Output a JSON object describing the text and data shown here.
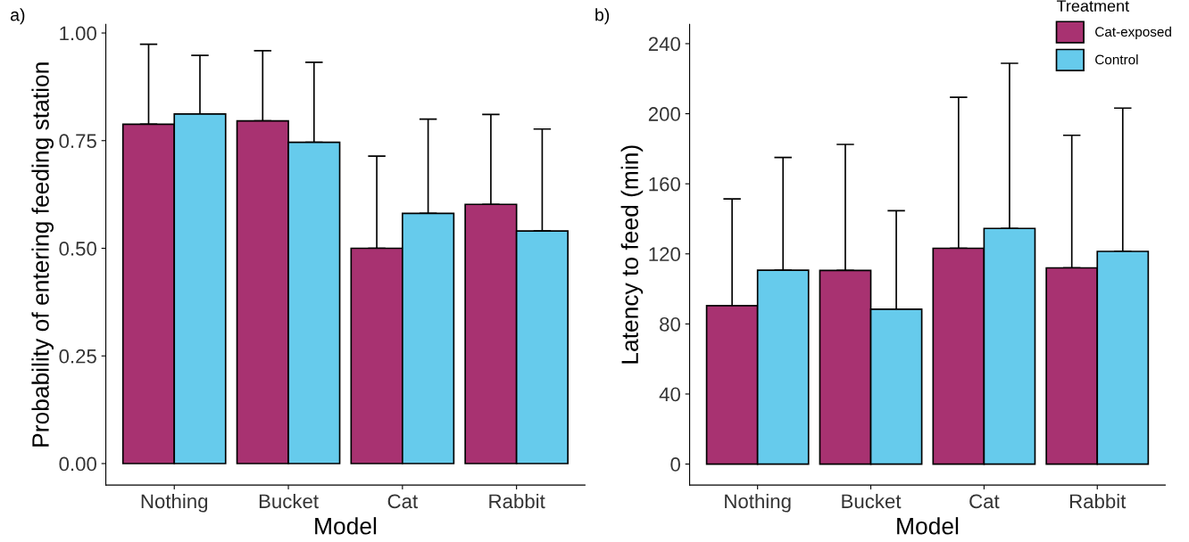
{
  "chart_data": [
    {
      "type": "bar",
      "title": "a)",
      "xlabel": "Model",
      "ylabel": "Probability of entering feeding station",
      "categories": [
        "Nothing",
        "Bucket",
        "Cat",
        "Rabbit"
      ],
      "ylim": [
        -0.05,
        1.02
      ],
      "yticks": [
        {
          "value": 0,
          "label": "0.00"
        },
        {
          "value": 0.25,
          "label": "0.25"
        },
        {
          "value": 0.5,
          "label": "0.50"
        },
        {
          "value": 0.75,
          "label": "0.75"
        },
        {
          "value": 1,
          "label": "1.00"
        }
      ],
      "grid": false,
      "legend": false,
      "series": [
        {
          "color": "#a83271",
          "values": [
            0.788,
            0.796,
            0.5,
            0.602
          ],
          "errors": [
            [
              0.788,
              0.974
            ],
            [
              0.796,
              0.959
            ],
            [
              0.5,
              0.714
            ],
            [
              0.602,
              0.811
            ]
          ]
        },
        {
          "color": "#66cbec",
          "values": [
            0.812,
            0.746,
            0.581,
            0.54
          ],
          "errors": [
            [
              0.812,
              0.948
            ],
            [
              0.746,
              0.932
            ],
            [
              0.581,
              0.8
            ],
            [
              0.54,
              0.777
            ]
          ]
        }
      ]
    },
    {
      "type": "bar",
      "title": "b)",
      "xlabel": "Model",
      "ylabel": "Latency to feed (min)",
      "legend_title": "Treatment",
      "categories": [
        "Nothing",
        "Bucket",
        "Cat",
        "Rabbit"
      ],
      "ylim": [
        -12,
        251
      ],
      "yticks": [
        0,
        40,
        80,
        120,
        160,
        200,
        240
      ],
      "grid": false,
      "legend": "top right",
      "series": [
        {
          "name": "Cat-exposed",
          "color": "#a83271",
          "values": [
            90.4,
            110.5,
            123.2,
            112.0
          ],
          "errors": [
            [
              90.4,
              151.4
            ],
            [
              110.5,
              182.5
            ],
            [
              123.2,
              209.4
            ],
            [
              112.0,
              187.7
            ]
          ]
        },
        {
          "name": "Control",
          "color": "#66cbec",
          "values": [
            110.7,
            88.4,
            134.5,
            121.4
          ],
          "errors": [
            [
              110.7,
              175.0
            ],
            [
              88.4,
              144.6
            ],
            [
              134.5,
              228.8
            ],
            [
              121.4,
              203.2
            ]
          ]
        }
      ]
    }
  ]
}
